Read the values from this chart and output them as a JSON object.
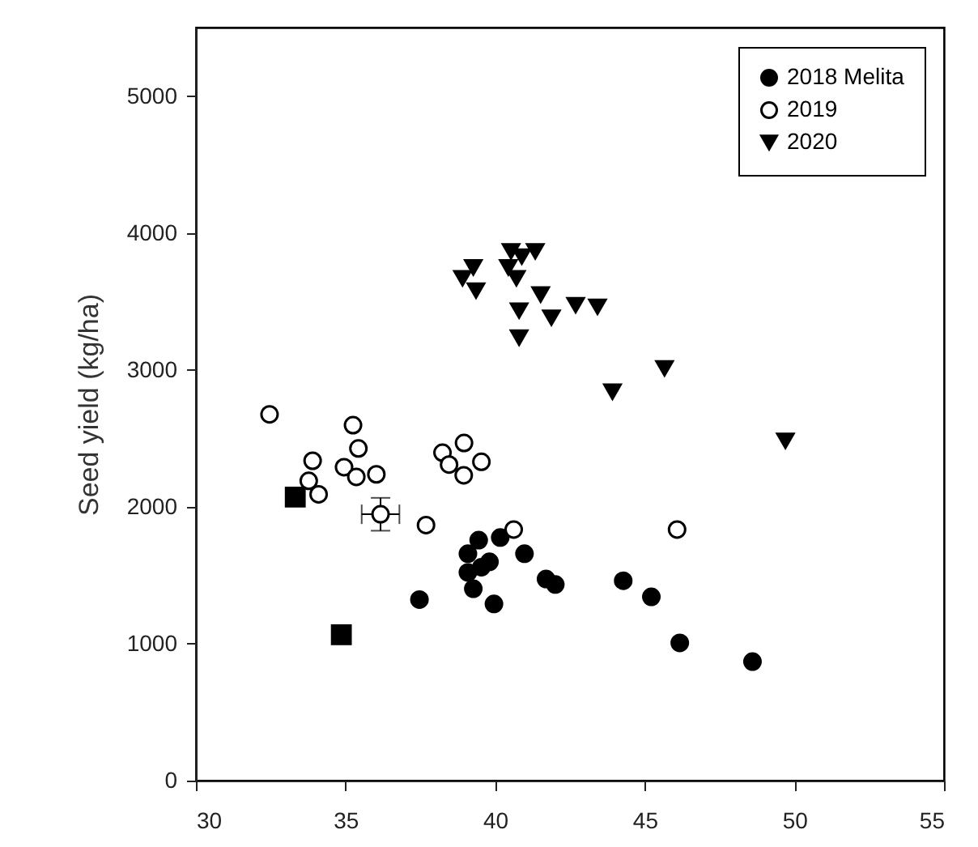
{
  "chart_data": {
    "type": "scatter",
    "ylabel": "Seed yield (kg/ha)",
    "xlim": [
      30,
      55
    ],
    "xticks": [
      30,
      35,
      40,
      45,
      50,
      55
    ],
    "ylim": [
      0,
      5500
    ],
    "yticks": [
      0,
      1000,
      2000,
      3000,
      4000,
      5000
    ],
    "grid": false,
    "legend": "top right",
    "series": [
      {
        "name": "2018 Melita",
        "color": "#000000",
        "marker": "circle",
        "x": [
          39.45,
          39.09,
          39.81,
          39.09,
          39.27,
          39.96,
          40.17,
          40.98,
          41.7,
          42.01,
          44.28,
          45.22,
          46.17,
          48.6,
          37.47,
          39.54
        ],
        "values": [
          1756,
          1657,
          1598,
          1520,
          1401,
          1290,
          1775,
          1657,
          1472,
          1432,
          1460,
          1342,
          1006,
          869,
          1322,
          1559
        ]
      },
      {
        "name": "2019",
        "color": "#ffffff",
        "marker": "circle",
        "x": [
          32.46,
          35.25,
          35.43,
          33.9,
          34.95,
          36.03,
          35.36,
          33.77,
          34.1,
          38.96,
          38.24,
          39.54,
          38.46,
          38.95,
          37.69,
          40.62,
          46.08,
          36.17
        ],
        "values": [
          2675,
          2596,
          2426,
          2336,
          2289,
          2237,
          2218,
          2189,
          2091,
          2466,
          2395,
          2328,
          2308,
          2230,
          1866,
          1834,
          1834,
          1945
        ],
        "errors": [
          null,
          null,
          null,
          null,
          null,
          null,
          null,
          null,
          null,
          null,
          null,
          null,
          null,
          null,
          null,
          null,
          null,
          120
        ],
        "xerrors": [
          null,
          null,
          null,
          null,
          null,
          null,
          null,
          null,
          null,
          null,
          null,
          null,
          null,
          null,
          null,
          null,
          null,
          0.63
        ]
      },
      {
        "name": "2020",
        "color": "#000000",
        "marker": "triangle",
        "x": [
          39.27,
          38.91,
          39.36,
          40.53,
          41.34,
          40.89,
          40.44,
          40.71,
          41.52,
          40.8,
          41.88,
          42.69,
          43.42,
          40.8,
          45.66,
          43.92,
          49.7
        ],
        "values": [
          3748,
          3669,
          3579,
          3866,
          3866,
          3827,
          3748,
          3669,
          3550,
          3432,
          3381,
          3472,
          3460,
          3235,
          3011,
          2840,
          2482
        ]
      },
      {
        "color": "#000000",
        "marker": "square",
        "x": [
          33.32,
          34.86
        ],
        "values": [
          2071,
          1065
        ]
      }
    ]
  }
}
